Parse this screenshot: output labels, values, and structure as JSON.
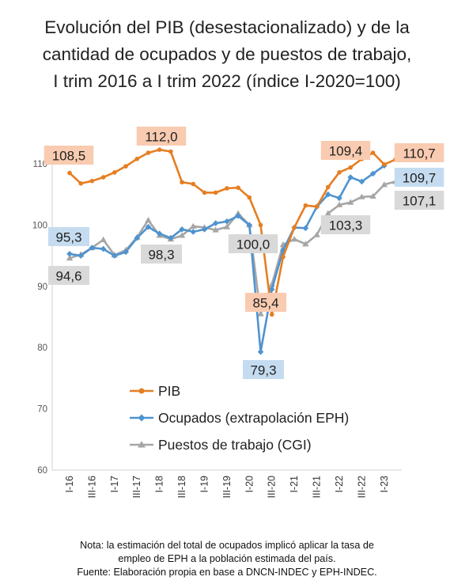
{
  "title_lines": [
    "Evolución del PIB (desestacionalizado) y de la",
    "cantidad de ocupados y de puestos de trabajo,",
    "I trim 2016 a I trim 2022 (índice I-2020=100)"
  ],
  "note_lines": [
    "Nota: la estimación del total de ocupados implicó aplicar la tasa de",
    "empleo de EPH a la población estimada del país.",
    "Fuente: Elaboración propia en base a DNCN-INDEC y EPH-INDEC."
  ],
  "chart_data": {
    "type": "line",
    "ylim": [
      60,
      110
    ],
    "yticks": [
      60,
      70,
      80,
      90,
      100,
      110
    ],
    "grid": false,
    "legend_position": "lower-center",
    "x_tick_labels": [
      "I-16",
      "III-16",
      "I-17",
      "III-17",
      "I-18",
      "III-18",
      "I-19",
      "III-19",
      "I-20",
      "III-20",
      "I-21",
      "III-21",
      "I-22",
      "III-22",
      "I-23"
    ],
    "series": [
      {
        "name": "PIB",
        "color": "#E67E22",
        "marker": "circle",
        "values": [
          108.5,
          106.8,
          107.2,
          107.8,
          108.6,
          109.6,
          110.8,
          111.8,
          112.3,
          112.0,
          107.0,
          106.7,
          105.3,
          105.3,
          106.0,
          106.1,
          104.5,
          100.0,
          85.4,
          94.8,
          99.6,
          103.2,
          103.0,
          106.2,
          108.6,
          109.4,
          110.8,
          111.8,
          109.9,
          110.7
        ]
      },
      {
        "name": "Ocupados (extrapolación EPH)",
        "color": "#4F93CF",
        "marker": "diamond",
        "values": [
          95.3,
          95.0,
          96.3,
          96.1,
          95.0,
          95.6,
          97.9,
          99.7,
          98.6,
          97.9,
          99.3,
          98.9,
          99.3,
          100.3,
          100.6,
          101.5,
          100.0,
          79.3,
          89.5,
          95.9,
          99.6,
          99.5,
          103.0,
          105.0,
          104.4,
          107.8,
          107.1,
          108.4,
          109.7
        ]
      },
      {
        "name": "Puestos de trabajo (CGI)",
        "color": "#A6A6A6",
        "marker": "triangle",
        "values": [
          94.6,
          95.2,
          96.3,
          97.6,
          95.1,
          95.9,
          98.0,
          100.8,
          98.3,
          97.7,
          98.3,
          99.8,
          99.6,
          99.2,
          99.7,
          101.9,
          100.0,
          85.5,
          90.3,
          96.8,
          97.7,
          96.9,
          98.4,
          101.9,
          103.3,
          103.7,
          104.6,
          104.7,
          106.6,
          107.1
        ]
      }
    ],
    "annotations": [
      {
        "text": "108,5",
        "series": "PIB",
        "bg": "#F9CBB0"
      },
      {
        "text": "112,0",
        "series": "PIB",
        "bg": "#F9CBB0"
      },
      {
        "text": "109,4",
        "series": "PIB",
        "bg": "#F9CBB0"
      },
      {
        "text": "110,7",
        "series": "PIB",
        "bg": "#F9CBB0"
      },
      {
        "text": "85,4",
        "series": "PIB",
        "bg": "#F9CBB0"
      },
      {
        "text": "95,3",
        "series": "Ocupados (extrapolación EPH)",
        "bg": "#C5DCF0"
      },
      {
        "text": "109,7",
        "series": "Ocupados (extrapolación EPH)",
        "bg": "#C5DCF0"
      },
      {
        "text": "79,3",
        "series": "Ocupados (extrapolación EPH)",
        "bg": "#C5DCF0"
      },
      {
        "text": "94,6",
        "series": "Puestos de trabajo (CGI)",
        "bg": "#D9D9D9"
      },
      {
        "text": "98,3",
        "series": "Puestos de trabajo (CGI)",
        "bg": "#D9D9D9"
      },
      {
        "text": "100,0",
        "series": "Puestos de trabajo (CGI)",
        "bg": "#D9D9D9"
      },
      {
        "text": "103,3",
        "series": "Puestos de trabajo (CGI)",
        "bg": "#D9D9D9"
      },
      {
        "text": "107,1",
        "series": "Puestos de trabajo (CGI)",
        "bg": "#D9D9D9"
      }
    ]
  }
}
